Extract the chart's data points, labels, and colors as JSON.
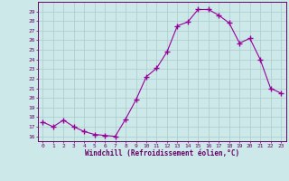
{
  "x": [
    0,
    1,
    2,
    3,
    4,
    5,
    6,
    7,
    8,
    9,
    10,
    11,
    12,
    13,
    14,
    15,
    16,
    17,
    18,
    19,
    20,
    21,
    22,
    23
  ],
  "y": [
    17.5,
    17.0,
    17.7,
    17.0,
    16.5,
    16.2,
    16.1,
    16.0,
    17.8,
    19.8,
    22.2,
    23.1,
    24.8,
    27.5,
    27.9,
    29.2,
    29.2,
    28.6,
    27.8,
    25.7,
    26.2,
    24.0,
    21.0,
    20.5
  ],
  "line_color": "#990099",
  "marker": "+",
  "marker_size": 4,
  "bg_color": "#cce8e8",
  "grid_color": "#aacccc",
  "xlabel": "Windchill (Refroidissement éolien,°C)",
  "ylim": [
    15.5,
    30.0
  ],
  "xlim": [
    -0.5,
    23.5
  ],
  "yticks": [
    16,
    17,
    18,
    19,
    20,
    21,
    22,
    23,
    24,
    25,
    26,
    27,
    28,
    29
  ],
  "xticks": [
    0,
    1,
    2,
    3,
    4,
    5,
    6,
    7,
    8,
    9,
    10,
    11,
    12,
    13,
    14,
    15,
    16,
    17,
    18,
    19,
    20,
    21,
    22,
    23
  ],
  "tick_color": "#660066",
  "spine_color": "#660066",
  "label_color": "#660066"
}
